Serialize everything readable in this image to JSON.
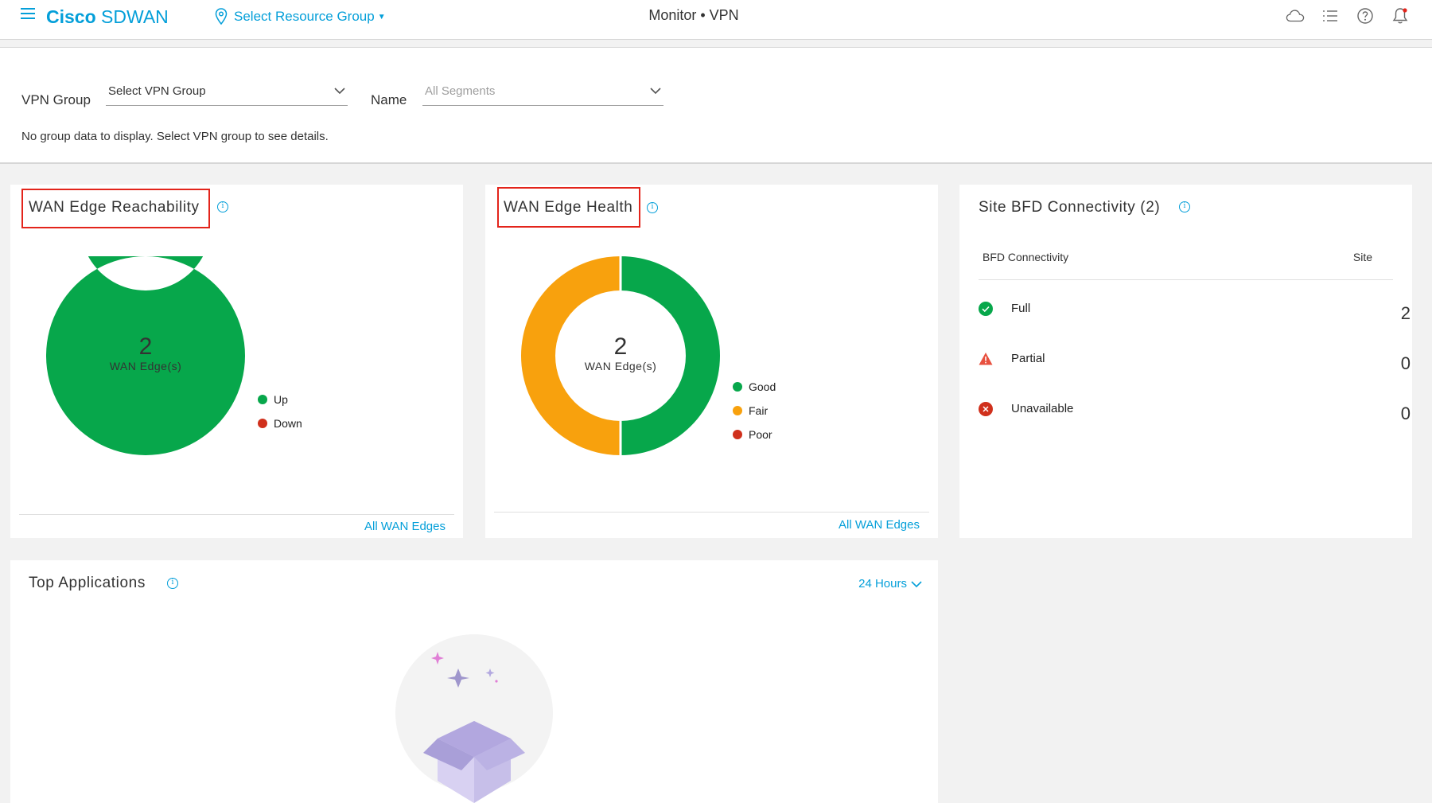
{
  "header": {
    "brand_bold": "Cisco",
    "brand_rest": "SDWAN",
    "resource_group": "Select Resource Group",
    "title": "Monitor • VPN",
    "icons": [
      "cloud-icon",
      "list-icon",
      "help-icon",
      "bell-icon"
    ]
  },
  "filters": {
    "vpn_group_label": "VPN Group",
    "vpn_group_value": "Select VPN Group",
    "name_label": "Name",
    "name_placeholder": "All Segments",
    "no_data_message": "No group data to display. Select VPN group to see details."
  },
  "reachability": {
    "title": "WAN Edge Reachability",
    "count": "2",
    "count_label": "WAN Edge(s)",
    "legend": [
      {
        "label": "Up",
        "color": "#07a74b"
      },
      {
        "label": "Down",
        "color": "#d0301c"
      }
    ],
    "values": {
      "up": 2,
      "down": 0
    },
    "link": "All WAN Edges"
  },
  "health": {
    "title": "WAN Edge Health",
    "count": "2",
    "count_label": "WAN Edge(s)",
    "legend": [
      {
        "label": "Good",
        "color": "#07a74b"
      },
      {
        "label": "Fair",
        "color": "#f8a10d"
      },
      {
        "label": "Poor",
        "color": "#d0301c"
      }
    ],
    "values": {
      "good": 1,
      "fair": 1,
      "poor": 0
    },
    "link": "All WAN Edges"
  },
  "bfd": {
    "title": "Site BFD Connectivity (2)",
    "col_connectivity": "BFD Connectivity",
    "col_site": "Site",
    "rows": [
      {
        "label": "Full",
        "value": "2",
        "icon": "check-circle-icon",
        "color": "#07a74b"
      },
      {
        "label": "Partial",
        "value": "0",
        "icon": "warning-icon",
        "color": "#e8513f"
      },
      {
        "label": "Unavailable",
        "value": "0",
        "icon": "error-circle-icon",
        "color": "#d0301c"
      }
    ]
  },
  "top_apps": {
    "title": "Top Applications",
    "range": "24 Hours"
  }
}
